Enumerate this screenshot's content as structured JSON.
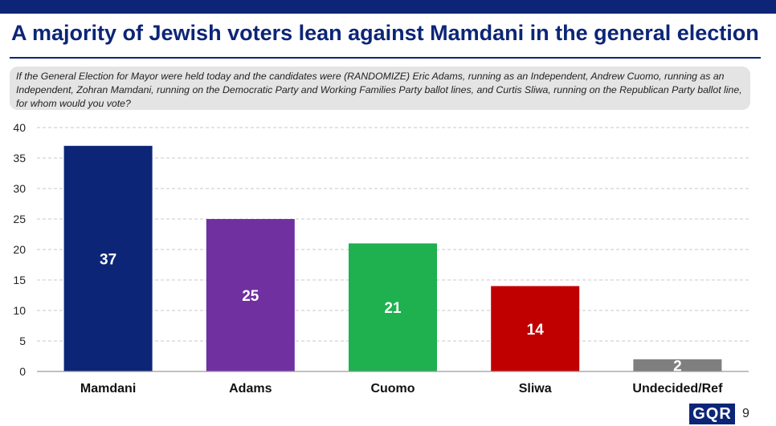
{
  "header": {
    "title": "A majority of Jewish voters lean against Mamdani in the general election",
    "question": "If the General Election for Mayor were held today and the candidates were (RANDOMIZE) Eric Adams, running as an Independent, Andrew Cuomo, running as an Independent, Zohran Mamdani, running on the Democratic Party and Working Families Party ballot lines, and Curtis Sliwa, running on the Republican Party ballot line, for whom would you vote?"
  },
  "footer": {
    "logo_text": "GQR",
    "page_number": "9"
  },
  "colors": {
    "brand": "#0c2577"
  },
  "chart_data": {
    "type": "bar",
    "categories": [
      "Mamdani",
      "Adams",
      "Cuomo",
      "Sliwa",
      "Undecided/Ref"
    ],
    "values": [
      37,
      25,
      21,
      14,
      2
    ],
    "data_labels": [
      "37",
      "25",
      "21",
      "14",
      "2"
    ],
    "colors": [
      "#0c2577",
      "#7030a0",
      "#1fb050",
      "#c00000",
      "#7f7f7f"
    ],
    "ylim": [
      0,
      40
    ],
    "yticks": [
      0,
      5,
      10,
      15,
      20,
      25,
      30,
      35,
      40
    ],
    "grid": true,
    "legend": "none"
  }
}
